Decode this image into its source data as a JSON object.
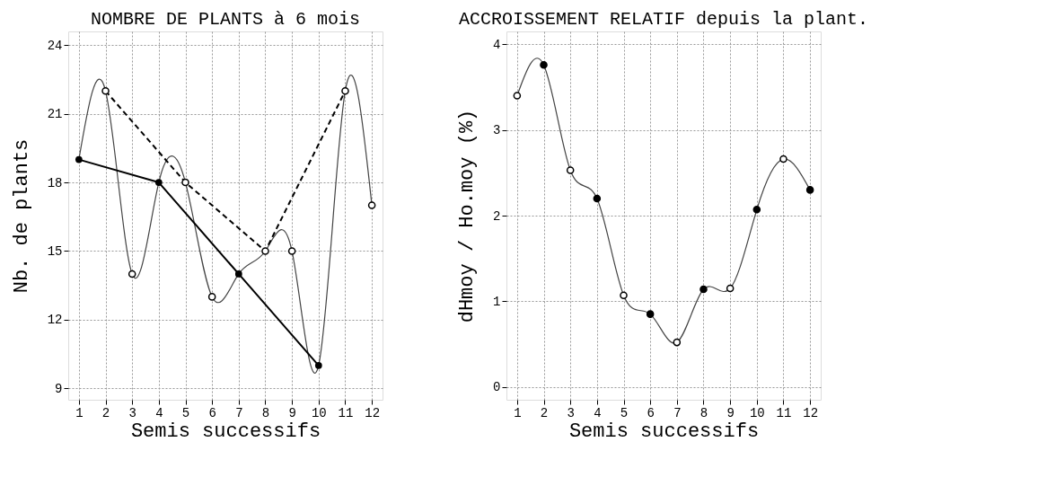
{
  "chart_data": [
    {
      "type": "line",
      "title": "NOMBRE DE PLANTS à 6 mois",
      "xlabel": "Semis successifs",
      "ylabel": "Nb. de plants",
      "xlim": [
        0.6,
        12.4
      ],
      "xticks": [
        1,
        2,
        3,
        4,
        5,
        6,
        7,
        8,
        9,
        10,
        11,
        12
      ],
      "ylim": [
        8.5,
        24.6
      ],
      "yticks": [
        9,
        12,
        15,
        18,
        21,
        24
      ],
      "grid": true,
      "x": [
        1,
        2,
        3,
        4,
        5,
        6,
        7,
        8,
        9,
        10,
        11,
        12
      ],
      "series": [
        {
          "type": "line",
          "marker": "none",
          "color": "#444444",
          "values": [
            19,
            22,
            14,
            18,
            18,
            13,
            14,
            15,
            15,
            10,
            22,
            17
          ]
        },
        {
          "type": "line",
          "marker": "circle",
          "color": "#000000",
          "x": [
            1,
            4,
            7,
            10
          ],
          "values": [
            19,
            18,
            14,
            10
          ]
        },
        {
          "type": "line",
          "marker": "none",
          "line_style": "dashed",
          "color": "#000000",
          "x": [
            2,
            5,
            8,
            11
          ],
          "values": [
            22,
            18,
            15,
            22
          ]
        },
        {
          "type": "scatter",
          "marker": "circle",
          "color": "#ffffff",
          "x": [
            2,
            3,
            5,
            6,
            8,
            9,
            11,
            12
          ],
          "values": [
            22,
            14,
            18,
            13,
            15,
            15,
            22,
            17
          ]
        }
      ]
    },
    {
      "type": "line",
      "title": "ACCROISSEMENT RELATIF depuis la plant.",
      "xlabel": "Semis successifs",
      "ylabel": "dHmoy / Ho.moy   (%)",
      "xlim": [
        0.6,
        12.4
      ],
      "xticks": [
        1,
        2,
        3,
        4,
        5,
        6,
        7,
        8,
        9,
        10,
        11,
        12
      ],
      "ylim": [
        -0.15,
        4.15
      ],
      "yticks": [
        0,
        1,
        2,
        3,
        4
      ],
      "grid": true,
      "x": [
        1,
        2,
        3,
        4,
        5,
        6,
        7,
        8,
        9,
        10,
        11,
        12
      ],
      "series": [
        {
          "type": "line",
          "marker": "none",
          "color": "#444444",
          "values": [
            3.4,
            3.76,
            2.53,
            2.2,
            1.07,
            0.85,
            0.52,
            1.14,
            1.15,
            2.07,
            2.66,
            2.3
          ]
        },
        {
          "type": "scatter",
          "marker": "circle",
          "color": "#000000",
          "x": [
            2,
            4,
            6,
            8,
            10,
            12
          ],
          "values": [
            3.76,
            2.2,
            0.85,
            1.14,
            2.07,
            2.3
          ]
        },
        {
          "type": "scatter",
          "marker": "circle",
          "color": "#ffffff",
          "x": [
            1,
            3,
            5,
            7,
            9,
            11
          ],
          "values": [
            3.4,
            2.53,
            1.07,
            0.52,
            1.15,
            2.66
          ]
        }
      ]
    }
  ]
}
